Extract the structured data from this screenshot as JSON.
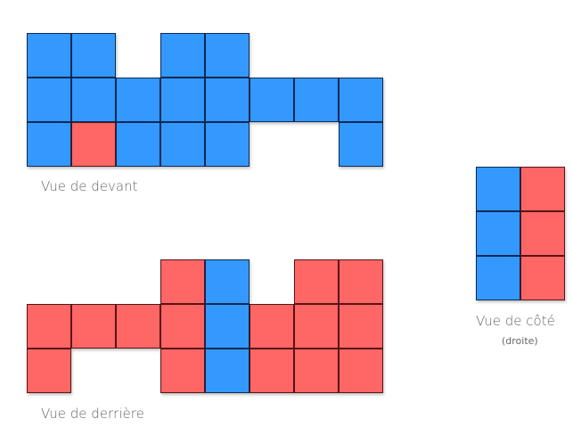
{
  "colors": {
    "blue": "#3399ff",
    "red": "#ff6666"
  },
  "views": [
    {
      "id": "front",
      "label": "Vue de devant",
      "rows": [
        "BB.BB...",
        "BBBBBBBB",
        "BRBBB..B"
      ]
    },
    {
      "id": "back",
      "label": "Vue de derrière",
      "rows": [
        "...RB.RR",
        "RRRRBRRR",
        "R..RBRRR"
      ]
    },
    {
      "id": "side",
      "label": "Vue de côté",
      "sublabel": "(droite)",
      "rows": [
        "BR",
        "BR",
        "BR"
      ]
    }
  ]
}
